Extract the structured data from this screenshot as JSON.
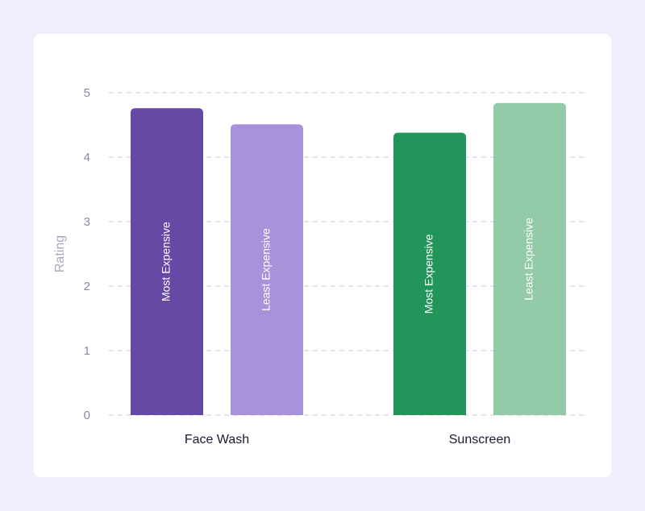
{
  "chart_data": {
    "type": "bar",
    "title": "",
    "xlabel": "",
    "ylabel": "Rating",
    "ylim": [
      0,
      5
    ],
    "yticks": [
      0,
      1,
      2,
      3,
      4,
      5
    ],
    "grid": true,
    "categories": [
      "Face Wash",
      "Sunscreen"
    ],
    "bars": [
      {
        "category": "Face Wash",
        "label": "Most Expensive",
        "value": 4.76,
        "color": "#6649a4"
      },
      {
        "category": "Face Wash",
        "label": "Least Expensive",
        "value": 4.51,
        "color": "#a892da"
      },
      {
        "category": "Sunscreen",
        "label": "Most Expensive",
        "value": 4.38,
        "color": "#22965a"
      },
      {
        "category": "Sunscreen",
        "label": "Least Expensive",
        "value": 4.84,
        "color": "#93caa8"
      }
    ]
  }
}
